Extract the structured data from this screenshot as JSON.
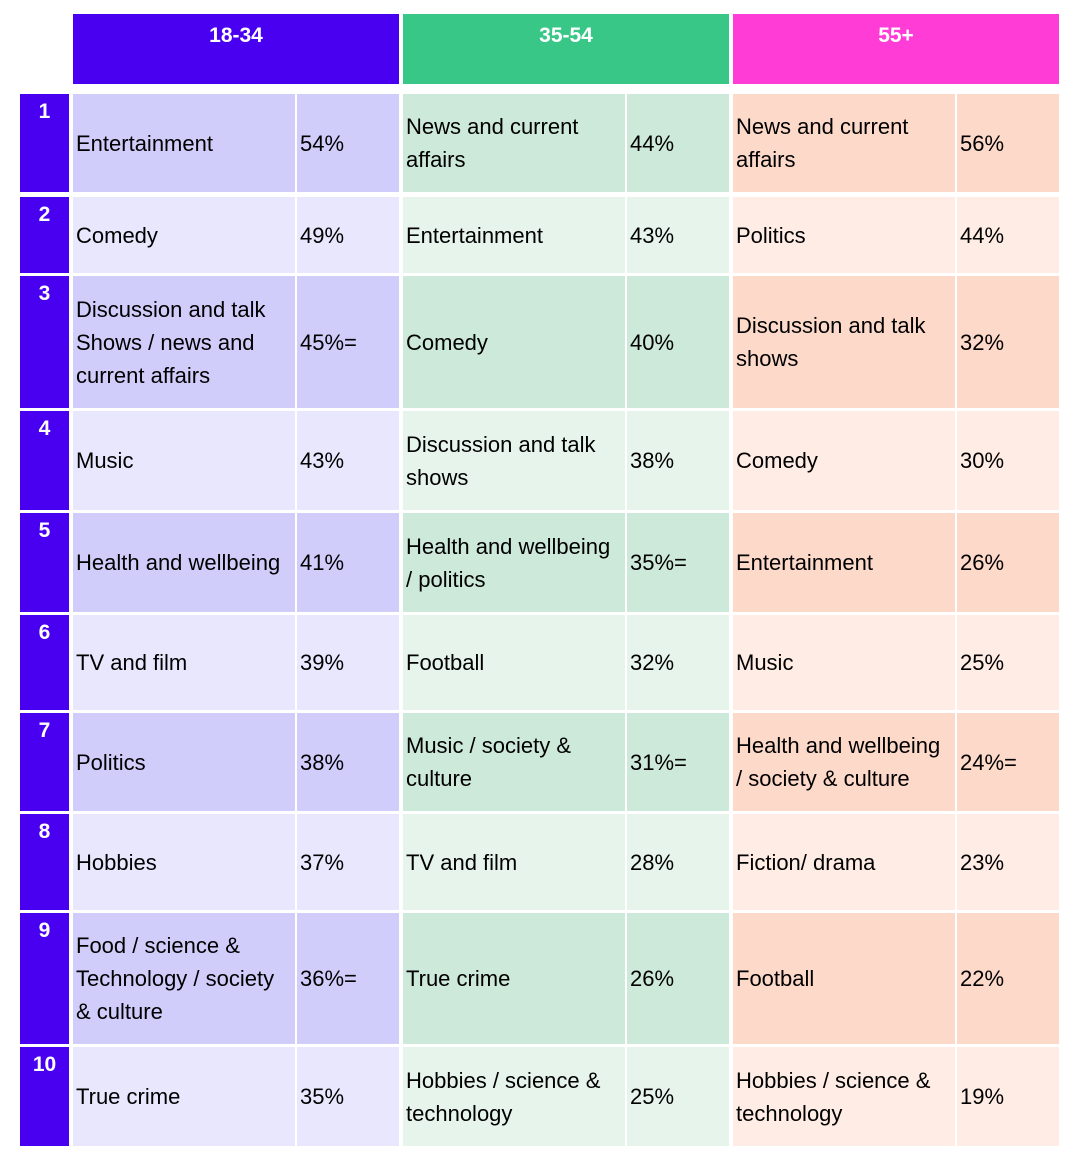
{
  "headers": [
    {
      "label": "18-34",
      "color": "#4a00f0"
    },
    {
      "label": "35-54",
      "color": "#38c787"
    },
    {
      "label": "55+",
      "color": "#ff3cd6"
    }
  ],
  "rows": [
    {
      "rank": "1",
      "a": {
        "topic": "Entertainment",
        "pct": "54%"
      },
      "b": {
        "topic": "News and current affairs",
        "pct": "44%"
      },
      "c": {
        "topic": "News and current affairs",
        "pct": "56%"
      }
    },
    {
      "rank": "2",
      "a": {
        "topic": "Comedy",
        "pct": "49%"
      },
      "b": {
        "topic": "Entertainment",
        "pct": "43%"
      },
      "c": {
        "topic": "Politics",
        "pct": "44%"
      }
    },
    {
      "rank": "3",
      "a": {
        "topic": "Discussion and talk Shows / news and current affairs",
        "pct": "45%="
      },
      "b": {
        "topic": "Comedy",
        "pct": "40%"
      },
      "c": {
        "topic": "Discussion and talk shows",
        "pct": "32%"
      }
    },
    {
      "rank": "4",
      "a": {
        "topic": "Music",
        "pct": "43%"
      },
      "b": {
        "topic": "Discussion and talk shows",
        "pct": "38%"
      },
      "c": {
        "topic": "Comedy",
        "pct": "30%"
      }
    },
    {
      "rank": "5",
      "a": {
        "topic": "Health and wellbeing",
        "pct": "41%"
      },
      "b": {
        "topic": "Health and wellbeing / politics",
        "pct": "35%="
      },
      "c": {
        "topic": "Entertainment",
        "pct": "26%"
      }
    },
    {
      "rank": "6",
      "a": {
        "topic": "TV and film",
        "pct": "39%"
      },
      "b": {
        "topic": "Football",
        "pct": "32%"
      },
      "c": {
        "topic": "Music",
        "pct": "25%"
      }
    },
    {
      "rank": "7",
      "a": {
        "topic": "Politics",
        "pct": "38%"
      },
      "b": {
        "topic": "Music / society & culture",
        "pct": "31%="
      },
      "c": {
        "topic": "Health and wellbeing / society & culture",
        "pct": "24%="
      }
    },
    {
      "rank": "8",
      "a": {
        "topic": "Hobbies",
        "pct": "37%"
      },
      "b": {
        "topic": "TV and film",
        "pct": "28%"
      },
      "c": {
        "topic": "Fiction/ drama",
        "pct": "23%"
      }
    },
    {
      "rank": "9",
      "a": {
        "topic": "Food / science & Technology / society & culture",
        "pct": "36%="
      },
      "b": {
        "topic": "True crime",
        "pct": "26%"
      },
      "c": {
        "topic": "Football",
        "pct": "22%"
      }
    },
    {
      "rank": "10",
      "a": {
        "topic": "True crime",
        "pct": "35%"
      },
      "b": {
        "topic": "Hobbies / science & technology",
        "pct": "25%"
      },
      "c": {
        "topic": "Hobbies / science & technology",
        "pct": "19%"
      }
    }
  ]
}
